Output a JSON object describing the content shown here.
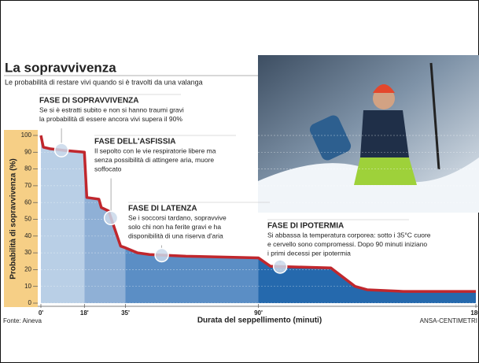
{
  "chart_data": {
    "type": "area",
    "title": "La sopravvivenza",
    "subtitle": "Le probabilità di restare vivi quando si è travolti da una valanga",
    "xlabel": "Durata del seppellimento (minuti)",
    "ylabel": "Probabilità di sopravvivenza (%)",
    "x": [
      0,
      1,
      4,
      10,
      18,
      19,
      24,
      25,
      28,
      33,
      35,
      40,
      45,
      60,
      90,
      95,
      120,
      130,
      135,
      150,
      180
    ],
    "values": [
      100,
      93,
      92,
      91,
      90,
      63,
      62,
      57,
      55,
      34,
      33,
      30,
      29,
      28,
      27,
      22,
      21,
      10,
      8,
      7,
      7
    ],
    "color": "#c0272d",
    "xlim": [
      0,
      180
    ],
    "ylim": [
      0,
      100
    ],
    "xticks": [
      {
        "value": 0,
        "label": "0'"
      },
      {
        "value": 18,
        "label": "18'"
      },
      {
        "value": 35,
        "label": "35'"
      },
      {
        "value": 90,
        "label": "90'"
      },
      {
        "value": 180,
        "label": "180"
      }
    ],
    "yticks": [
      0,
      10,
      20,
      30,
      40,
      50,
      60,
      70,
      80,
      90,
      100
    ],
    "grid": true,
    "regions": [
      {
        "from": 0,
        "to": 18,
        "color": "#b9cfe6"
      },
      {
        "from": 18,
        "to": 35,
        "color": "#8fb0d6"
      },
      {
        "from": 35,
        "to": 90,
        "color": "#5b8ec5"
      },
      {
        "from": 90,
        "to": 180,
        "color": "#2569ad"
      }
    ],
    "annotations": [
      {
        "title": "FASE DI SOPRAVVIVENZA",
        "lines": [
          "Se si è estratti subito e non si hanno traumi gravi",
          "la probabilità di essere ancora vivi supera il 90%"
        ],
        "x": 8.5
      },
      {
        "title": "FASE DELL'ASFISSIA",
        "lines": [
          "Il sepolto con le vie respiratorie libere ma",
          "senza possibilità di attingere aria, muore",
          "soffocato"
        ],
        "x": 29
      },
      {
        "title": "FASE DI LATENZA",
        "lines": [
          "Se i soccorsi tardano, sopravvive",
          "solo chi non ha ferite gravi e ha",
          "disponibilità di una riserva d'aria"
        ],
        "x": 50
      },
      {
        "title": "FASE DI IPOTERMIA",
        "lines": [
          "Si abbassa la temperatura corporea: sotto i 35°C cuore",
          "e cervello sono compromessi. Dopo 90 minuti iniziano",
          "i primi decessi per ipotermia"
        ],
        "x": 99
      }
    ],
    "source": "Fonte: Aineva",
    "credit": "ANSA-CENTIMETRI"
  }
}
